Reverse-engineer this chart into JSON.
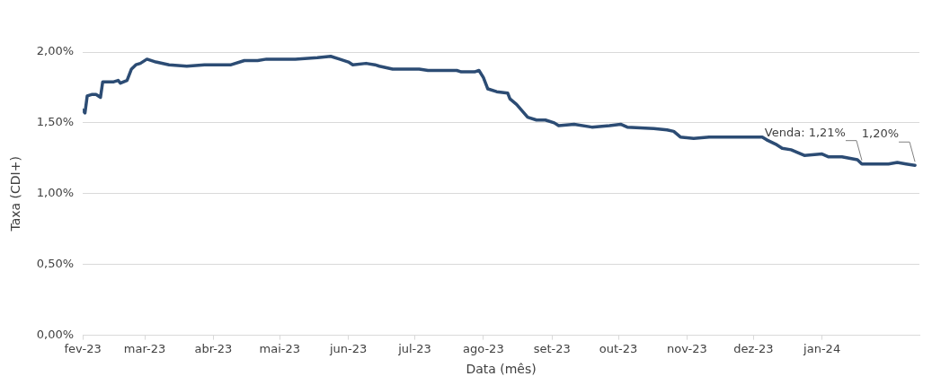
{
  "chart_data": {
    "type": "line",
    "xlabel": "Data (mês)",
    "ylabel": "Taxa (CDI+)",
    "x": [
      "2023-02-01",
      "2023-02-02",
      "2023-02-03",
      "2023-02-05",
      "2023-02-07",
      "2023-02-09",
      "2023-02-10",
      "2023-02-15",
      "2023-02-17",
      "2023-02-18",
      "2023-02-21",
      "2023-02-23",
      "2023-02-25",
      "2023-02-27",
      "2023-03-02",
      "2023-03-06",
      "2023-03-12",
      "2023-03-20",
      "2023-03-28",
      "2023-04-09",
      "2023-04-15",
      "2023-04-21",
      "2023-04-25",
      "2023-05-08",
      "2023-05-18",
      "2023-05-24",
      "2023-05-28",
      "2023-06-01",
      "2023-06-03",
      "2023-06-09",
      "2023-06-13",
      "2023-06-15",
      "2023-06-21",
      "2023-07-03",
      "2023-07-07",
      "2023-07-20",
      "2023-07-22",
      "2023-07-28",
      "2023-07-30",
      "2023-08-01",
      "2023-08-03",
      "2023-08-07",
      "2023-08-12",
      "2023-08-13",
      "2023-08-16",
      "2023-08-21",
      "2023-08-25",
      "2023-08-29",
      "2023-09-02",
      "2023-09-04",
      "2023-09-11",
      "2023-09-19",
      "2023-09-27",
      "2023-10-02",
      "2023-10-05",
      "2023-10-17",
      "2023-10-23",
      "2023-10-26",
      "2023-10-29",
      "2023-11-04",
      "2023-11-11",
      "2023-11-23",
      "2023-12-05",
      "2023-12-07",
      "2023-12-11",
      "2023-12-14",
      "2023-12-18",
      "2023-12-24",
      "2024-01-01",
      "2024-01-04",
      "2024-01-10",
      "2024-01-17",
      "2024-01-19",
      "2024-01-23",
      "2024-01-31",
      "2024-02-04",
      "2024-02-08",
      "2024-02-12"
    ],
    "series": [
      {
        "color": "#2c4c74",
        "values": [
          1.59,
          1.57,
          1.69,
          1.7,
          1.7,
          1.68,
          1.79,
          1.79,
          1.8,
          1.78,
          1.8,
          1.88,
          1.91,
          1.92,
          1.95,
          1.93,
          1.91,
          1.9,
          1.91,
          1.91,
          1.94,
          1.94,
          1.95,
          1.95,
          1.96,
          1.97,
          1.95,
          1.93,
          1.91,
          1.92,
          1.91,
          1.9,
          1.88,
          1.88,
          1.87,
          1.87,
          1.86,
          1.86,
          1.87,
          1.82,
          1.74,
          1.72,
          1.71,
          1.67,
          1.63,
          1.54,
          1.52,
          1.52,
          1.5,
          1.48,
          1.49,
          1.47,
          1.48,
          1.49,
          1.47,
          1.46,
          1.45,
          1.44,
          1.4,
          1.39,
          1.4,
          1.4,
          1.4,
          1.38,
          1.35,
          1.32,
          1.31,
          1.27,
          1.28,
          1.26,
          1.26,
          1.24,
          1.21,
          1.21,
          1.21,
          1.22,
          1.21,
          1.2
        ]
      }
    ],
    "xlim": [
      "2023-02-01",
      "2024-02-14"
    ],
    "xticks": [
      {
        "value": "2023-02-01",
        "label": "fev-23"
      },
      {
        "value": "2023-03-01",
        "label": "mar-23"
      },
      {
        "value": "2023-04-01",
        "label": "abr-23"
      },
      {
        "value": "2023-05-01",
        "label": "mai-23"
      },
      {
        "value": "2023-06-01",
        "label": "jun-23"
      },
      {
        "value": "2023-07-01",
        "label": "jul-23"
      },
      {
        "value": "2023-08-01",
        "label": "ago-23"
      },
      {
        "value": "2023-09-01",
        "label": "set-23"
      },
      {
        "value": "2023-10-01",
        "label": "out-23"
      },
      {
        "value": "2023-11-01",
        "label": "nov-23"
      },
      {
        "value": "2023-12-01",
        "label": "dez-23"
      },
      {
        "value": "2024-01-01",
        "label": "jan-24"
      }
    ],
    "ylim": [
      0,
      2
    ],
    "yticks": [
      {
        "value": 0,
        "label": "0,00%"
      },
      {
        "value": 0.5,
        "label": "0,50%"
      },
      {
        "value": 1,
        "label": "1,00%"
      },
      {
        "value": 1.5,
        "label": "1,50%"
      },
      {
        "value": 2,
        "label": "2,00%"
      }
    ],
    "grid": "y",
    "legend": false,
    "marker": "none",
    "line_style": "solid",
    "annotations": [
      {
        "text": "Venda: 1,21%",
        "x": "2024-01-19",
        "y": 1.21
      },
      {
        "text": "1,20%",
        "x": "2024-02-12",
        "y": 1.2
      }
    ]
  }
}
